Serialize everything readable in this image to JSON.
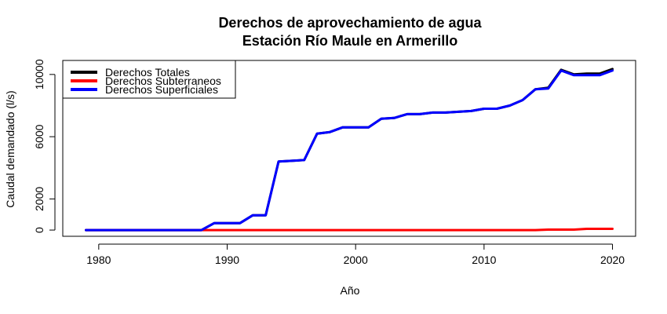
{
  "chart_data": {
    "type": "line",
    "title": "Derechos de aprovechamiento de agua",
    "subtitle": "Estación Río Maule en Armerillo",
    "xlabel": "Año",
    "ylabel": "Caudal demandado (l/s)",
    "x_ticks": [
      1980,
      1990,
      2000,
      2010,
      2020
    ],
    "y_ticks": [
      0,
      2000,
      6000,
      10000
    ],
    "xlim": [
      1977.2,
      2021.8
    ],
    "ylim": [
      -400,
      10900
    ],
    "grid": false,
    "legend_position": "top-left",
    "series": [
      {
        "name": "Derechos Totales",
        "color": "#000000",
        "x": [
          1979,
          1980,
          1981,
          1982,
          1983,
          1984,
          1985,
          1986,
          1987,
          1988,
          1989,
          1990,
          1991,
          1992,
          1993,
          1994,
          1995,
          1996,
          1997,
          1998,
          1999,
          2000,
          2001,
          2002,
          2003,
          2004,
          2005,
          2006,
          2007,
          2008,
          2009,
          2010,
          2011,
          2012,
          2013,
          2014,
          2015,
          2016,
          2017,
          2018,
          2019,
          2020
        ],
        "values": [
          0,
          0,
          0,
          0,
          0,
          0,
          0,
          0,
          0,
          0,
          450,
          450,
          450,
          950,
          950,
          4400,
          4450,
          4500,
          6200,
          6300,
          6600,
          6600,
          6600,
          7150,
          7200,
          7450,
          7450,
          7550,
          7550,
          7600,
          7650,
          7800,
          7800,
          8000,
          8350,
          9050,
          9150,
          10300,
          10000,
          10050,
          10050,
          10350
        ]
      },
      {
        "name": "Derechos Subterraneos",
        "color": "#ff0000",
        "x": [
          1979,
          1980,
          1981,
          1982,
          1983,
          1984,
          1985,
          1986,
          1987,
          1988,
          1989,
          1990,
          1991,
          1992,
          1993,
          1994,
          1995,
          1996,
          1997,
          1998,
          1999,
          2000,
          2001,
          2002,
          2003,
          2004,
          2005,
          2006,
          2007,
          2008,
          2009,
          2010,
          2011,
          2012,
          2013,
          2014,
          2015,
          2016,
          2017,
          2018,
          2019,
          2020
        ],
        "values": [
          0,
          0,
          0,
          0,
          0,
          0,
          0,
          0,
          0,
          0,
          0,
          0,
          0,
          0,
          0,
          0,
          0,
          0,
          0,
          0,
          0,
          0,
          0,
          0,
          0,
          0,
          0,
          0,
          0,
          0,
          0,
          0,
          0,
          0,
          0,
          0,
          30,
          30,
          30,
          80,
          80,
          80
        ]
      },
      {
        "name": "Derechos Superficiales",
        "color": "#0000ff",
        "x": [
          1979,
          1980,
          1981,
          1982,
          1983,
          1984,
          1985,
          1986,
          1987,
          1988,
          1989,
          1990,
          1991,
          1992,
          1993,
          1994,
          1995,
          1996,
          1997,
          1998,
          1999,
          2000,
          2001,
          2002,
          2003,
          2004,
          2005,
          2006,
          2007,
          2008,
          2009,
          2010,
          2011,
          2012,
          2013,
          2014,
          2015,
          2016,
          2017,
          2018,
          2019,
          2020
        ],
        "values": [
          0,
          0,
          0,
          0,
          0,
          0,
          0,
          0,
          0,
          0,
          450,
          450,
          450,
          950,
          950,
          4400,
          4450,
          4500,
          6200,
          6300,
          6600,
          6600,
          6600,
          7150,
          7200,
          7450,
          7450,
          7550,
          7550,
          7600,
          7650,
          7800,
          7800,
          8000,
          8350,
          9050,
          9100,
          10250,
          9950,
          9950,
          9950,
          10250
        ]
      }
    ]
  }
}
